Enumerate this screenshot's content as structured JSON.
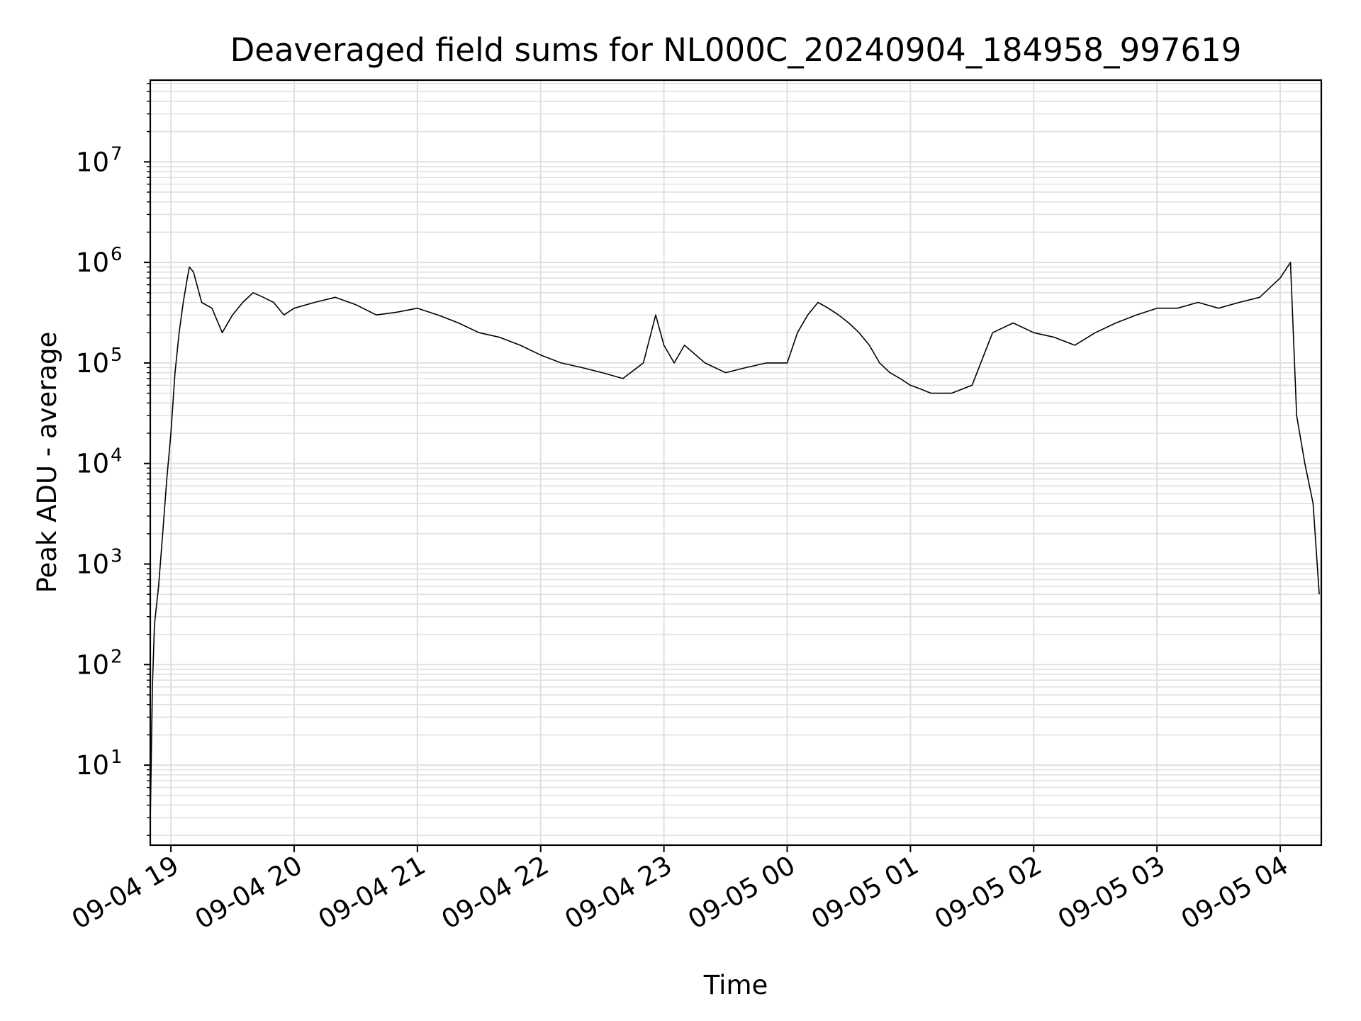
{
  "chart_data": {
    "type": "line",
    "title": "Deaveraged field sums for NL000C_20240904_184958_997619",
    "xlabel": "Time",
    "ylabel": "Peak ADU - average",
    "x_tick_labels": [
      "09-04 19",
      "09-04 20",
      "09-04 21",
      "09-04 22",
      "09-04 23",
      "09-05 00",
      "09-05 01",
      "09-05 02",
      "09-05 03",
      "09-05 04"
    ],
    "x_range": [
      "2024-09-04 18:49:58",
      "2024-09-05 04:20:00"
    ],
    "y_scale": "log",
    "ylim": [
      1.6,
      65000000.0
    ],
    "y_ticks": [
      {
        "base": "10",
        "exp": "1",
        "value": 10
      },
      {
        "base": "10",
        "exp": "2",
        "value": 100
      },
      {
        "base": "10",
        "exp": "3",
        "value": 1000
      },
      {
        "base": "10",
        "exp": "4",
        "value": 10000
      },
      {
        "base": "10",
        "exp": "5",
        "value": 100000
      },
      {
        "base": "10",
        "exp": "6",
        "value": 1000000
      },
      {
        "base": "10",
        "exp": "7",
        "value": 10000000
      }
    ],
    "grid": true,
    "line_color": "#000000",
    "grid_color": "#e0e0e0",
    "series": [
      {
        "x": [
          "2024-09-04 18:50",
          "2024-09-04 18:51",
          "2024-09-04 18:52",
          "2024-09-04 18:54",
          "2024-09-04 18:56",
          "2024-09-04 18:58",
          "2024-09-04 19:00",
          "2024-09-04 19:02",
          "2024-09-04 19:04",
          "2024-09-04 19:06",
          "2024-09-04 19:08",
          "2024-09-04 19:09",
          "2024-09-04 19:11",
          "2024-09-04 19:15",
          "2024-09-04 19:20",
          "2024-09-04 19:25",
          "2024-09-04 19:30",
          "2024-09-04 19:35",
          "2024-09-04 19:40",
          "2024-09-04 19:45",
          "2024-09-04 19:50",
          "2024-09-04 19:55",
          "2024-09-04 20:00",
          "2024-09-04 20:10",
          "2024-09-04 20:20",
          "2024-09-04 20:30",
          "2024-09-04 20:40",
          "2024-09-04 20:50",
          "2024-09-04 21:00",
          "2024-09-04 21:10",
          "2024-09-04 21:20",
          "2024-09-04 21:30",
          "2024-09-04 21:40",
          "2024-09-04 21:50",
          "2024-09-04 22:00",
          "2024-09-04 22:10",
          "2024-09-04 22:20",
          "2024-09-04 22:30",
          "2024-09-04 22:40",
          "2024-09-04 22:50",
          "2024-09-04 22:56",
          "2024-09-04 23:00",
          "2024-09-04 23:05",
          "2024-09-04 23:10",
          "2024-09-04 23:20",
          "2024-09-04 23:30",
          "2024-09-04 23:40",
          "2024-09-04 23:50",
          "2024-09-05 00:00",
          "2024-09-05 00:05",
          "2024-09-05 00:10",
          "2024-09-05 00:15",
          "2024-09-05 00:20",
          "2024-09-05 00:25",
          "2024-09-05 00:30",
          "2024-09-05 00:35",
          "2024-09-05 00:40",
          "2024-09-05 00:45",
          "2024-09-05 00:50",
          "2024-09-05 00:55",
          "2024-09-05 01:00",
          "2024-09-05 01:05",
          "2024-09-05 01:10",
          "2024-09-05 01:20",
          "2024-09-05 01:30",
          "2024-09-05 01:40",
          "2024-09-05 01:50",
          "2024-09-05 02:00",
          "2024-09-05 02:10",
          "2024-09-05 02:20",
          "2024-09-05 02:30",
          "2024-09-05 02:40",
          "2024-09-05 02:50",
          "2024-09-05 03:00",
          "2024-09-05 03:10",
          "2024-09-05 03:20",
          "2024-09-05 03:30",
          "2024-09-05 03:40",
          "2024-09-05 03:50",
          "2024-09-05 04:00",
          "2024-09-05 04:05",
          "2024-09-05 04:08",
          "2024-09-05 04:12",
          "2024-09-05 04:16",
          "2024-09-05 04:19"
        ],
        "y": [
          3,
          60,
          250,
          600,
          2000,
          7000,
          20000,
          80000,
          200000,
          400000,
          700000,
          900000,
          800000,
          400000,
          350000,
          200000,
          300000,
          400000,
          500000,
          450000,
          400000,
          300000,
          350000,
          400000,
          450000,
          380000,
          300000,
          320000,
          350000,
          300000,
          250000,
          200000,
          180000,
          150000,
          120000,
          100000,
          90000,
          80000,
          70000,
          100000,
          300000,
          150000,
          100000,
          150000,
          100000,
          80000,
          90000,
          100000,
          100000,
          200000,
          300000,
          400000,
          350000,
          300000,
          250000,
          200000,
          150000,
          100000,
          80000,
          70000,
          60000,
          55000,
          50000,
          50000,
          60000,
          200000,
          250000,
          200000,
          180000,
          150000,
          200000,
          250000,
          300000,
          350000,
          350000,
          400000,
          350000,
          400000,
          450000,
          700000,
          1000000,
          30000,
          10000,
          4000,
          500
        ]
      }
    ]
  }
}
